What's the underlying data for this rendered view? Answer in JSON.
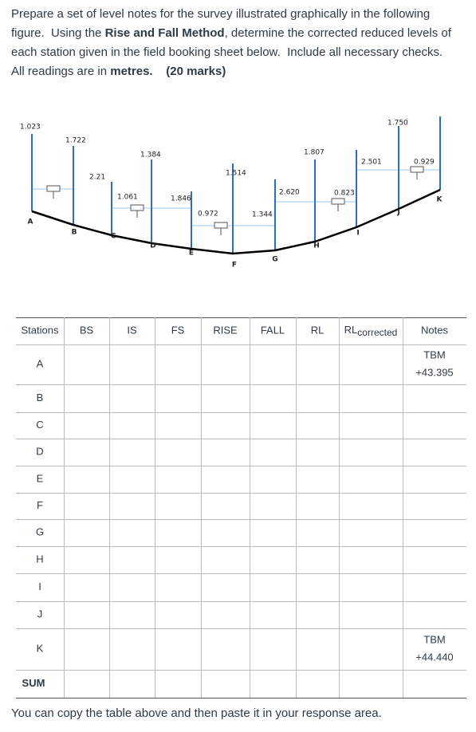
{
  "question": [
    {
      "text": "Prepare a set of level notes for the survey illustrated graphically in the following figure.  Using the ",
      "bold": false
    },
    {
      "text": "Rise and Fall Method",
      "bold": true
    },
    {
      "text": ", determine the corrected reduced levels of each station given in the field booking sheet below.  Include all necessary checks.  All readings are in ",
      "bold": false
    },
    {
      "text": "metres.",
      "bold": true
    },
    {
      "text": "    (20 marks)",
      "bold": true
    }
  ],
  "figure": {
    "readings": [
      "1.023",
      "1.722",
      "2.21",
      "1.061",
      "1.384",
      "1.846",
      "0.972",
      "1.514",
      "1.344",
      "2.620",
      "1.807",
      "0.823",
      "2.501",
      "1.750",
      "0.929"
    ],
    "stations": [
      "A",
      "B",
      "C",
      "D",
      "E",
      "F",
      "G",
      "H",
      "I",
      "J",
      "K"
    ]
  },
  "table": {
    "header": [
      "Stations",
      "BS",
      "IS",
      "FS",
      "RISE",
      "FALL",
      "RL",
      {
        "text": "RL",
        "subscript": "corrected"
      },
      "Notes"
    ],
    "rows": [
      {
        "station": "A",
        "notes": [
          "TBM",
          "+43.395"
        ]
      },
      {
        "station": "B",
        "notes": []
      },
      {
        "station": "C",
        "notes": []
      },
      {
        "station": "D",
        "notes": []
      },
      {
        "station": "E",
        "notes": []
      },
      {
        "station": "F",
        "notes": []
      },
      {
        "station": "G",
        "notes": []
      },
      {
        "station": "H",
        "notes": []
      },
      {
        "station": "I",
        "notes": []
      },
      {
        "station": "J",
        "notes": []
      },
      {
        "station": "K",
        "notes": [
          "TBM",
          "+44.440"
        ]
      },
      {
        "station": "SUM",
        "notes": []
      }
    ]
  },
  "footer": "You can copy the table above and then paste it in your response area."
}
